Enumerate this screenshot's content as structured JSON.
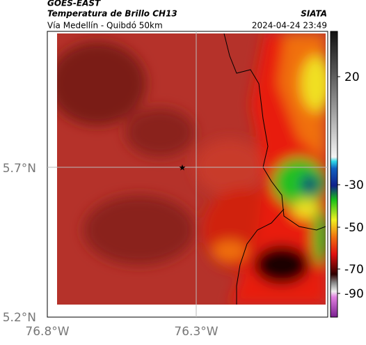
{
  "header": {
    "source": "GOES-EAST",
    "title": "Temperatura de Brillo CH13",
    "subtitle": "Vía Medellín - Quibdó 50km",
    "brand": "SIATA",
    "datetime": "2024-04-24 23:49"
  },
  "axes": {
    "y_labels": [
      "5.7°N",
      "5.2°N"
    ],
    "x_labels": [
      "76.8°W",
      "76.3°W"
    ]
  },
  "colorbar": {
    "ticks": [
      20,
      -30,
      -50,
      -70,
      -90
    ]
  }
}
